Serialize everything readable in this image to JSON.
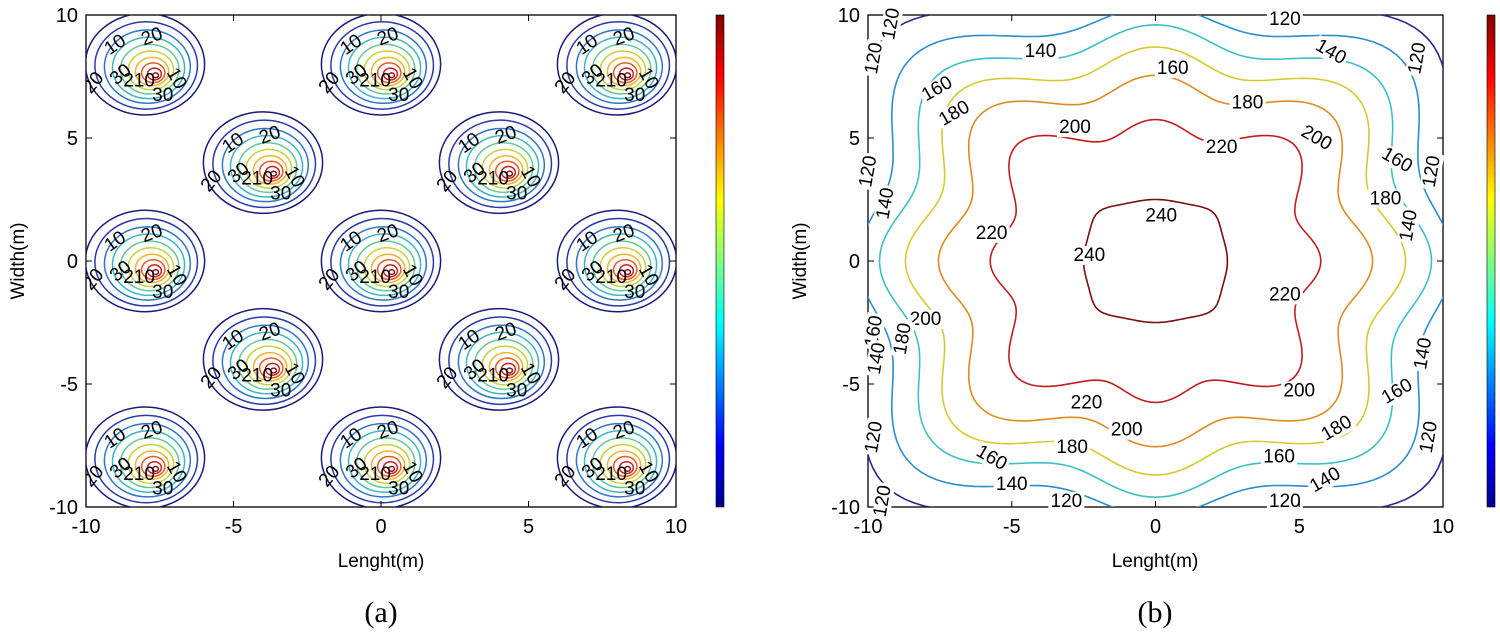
{
  "colors": {
    "colormap": [
      "#00008f",
      "#0000ff",
      "#0080ff",
      "#00ffff",
      "#80ff80",
      "#ffff00",
      "#ff8000",
      "#ff0000",
      "#800000"
    ],
    "contour_a": [
      "#1a1a7a",
      "#2a3aa8",
      "#2e76c8",
      "#3cb5c8",
      "#64c896",
      "#c8d23a",
      "#f0b428",
      "#e85a1e",
      "#c81e1e",
      "#8a1010"
    ],
    "contour_b": {
      "120": "#28288c",
      "140": "#2a8ed0",
      "160": "#3cc0c8",
      "180": "#d8c830",
      "200": "#e08a1e",
      "220": "#c01e1e",
      "240": "#7a0e0e"
    }
  },
  "chart_data": [
    {
      "type": "contour",
      "panel": "(a)",
      "xlabel": "Lenght(m)",
      "ylabel": "Width(m)",
      "xlim": [
        -10,
        10
      ],
      "ylim": [
        -10,
        10
      ],
      "xticks": [
        "-10",
        "-5",
        "0",
        "5",
        "10"
      ],
      "yticks": [
        "10",
        "5",
        "0",
        "-5",
        "-10"
      ],
      "sources": [
        {
          "x": -8,
          "y": 8
        },
        {
          "x": 0,
          "y": 8
        },
        {
          "x": 8,
          "y": 8
        },
        {
          "x": -4,
          "y": 4
        },
        {
          "x": 4,
          "y": 4
        },
        {
          "x": -8,
          "y": 0
        },
        {
          "x": 0,
          "y": 0
        },
        {
          "x": 8,
          "y": 0
        },
        {
          "x": -4,
          "y": -4
        },
        {
          "x": 4,
          "y": -4
        },
        {
          "x": -8,
          "y": -8
        },
        {
          "x": 0,
          "y": -8
        },
        {
          "x": 8,
          "y": -8
        }
      ],
      "contour_levels_labeled": [
        "10",
        "20",
        "30",
        "210"
      ],
      "colorbar": true
    },
    {
      "type": "contour",
      "panel": "(b)",
      "xlabel": "Lenght(m)",
      "ylabel": "Width(m)",
      "xlim": [
        -10,
        10
      ],
      "ylim": [
        -10,
        10
      ],
      "xticks": [
        "-10",
        "-5",
        "0",
        "5",
        "10"
      ],
      "yticks": [
        "10",
        "5",
        "0",
        "-5",
        "-10"
      ],
      "contour_levels": [
        120,
        140,
        160,
        180,
        200,
        220,
        240
      ],
      "colorbar": true
    }
  ],
  "captions": {
    "a": "(a)",
    "b": "(b)"
  },
  "contour_labels_b": [
    {
      "text": "120",
      "x": -9.0,
      "y": 9.6
    },
    {
      "text": "120",
      "x": 4.5,
      "y": 9.6
    },
    {
      "text": "120",
      "x": -9.6,
      "y": 8.2
    },
    {
      "text": "120",
      "x": 9.3,
      "y": 8.2
    },
    {
      "text": "140",
      "x": -4.0,
      "y": 8.3
    },
    {
      "text": "140",
      "x": 6.0,
      "y": 8.3
    },
    {
      "text": "160",
      "x": 0.6,
      "y": 7.6
    },
    {
      "text": "160",
      "x": -7.5,
      "y": 6.8
    },
    {
      "text": "180",
      "x": -6.9,
      "y": 5.8
    },
    {
      "text": "180",
      "x": 3.2,
      "y": 6.2
    },
    {
      "text": "200",
      "x": -2.8,
      "y": 5.2
    },
    {
      "text": "200",
      "x": 5.5,
      "y": 4.8
    },
    {
      "text": "220",
      "x": 2.3,
      "y": 4.4
    },
    {
      "text": "240",
      "x": 0.2,
      "y": 1.6
    },
    {
      "text": "240",
      "x": -2.3,
      "y": 0.0
    },
    {
      "text": "220",
      "x": -5.7,
      "y": 0.9
    },
    {
      "text": "220",
      "x": 4.5,
      "y": -1.6
    },
    {
      "text": "160",
      "x": 8.3,
      "y": 3.9
    },
    {
      "text": "180",
      "x": 8.0,
      "y": 2.3
    },
    {
      "text": "140",
      "x": 9.0,
      "y": 1.4
    },
    {
      "text": "120",
      "x": -9.8,
      "y": 3.6
    },
    {
      "text": "140",
      "x": -9.2,
      "y": 2.3
    },
    {
      "text": "120",
      "x": 9.8,
      "y": 3.6
    },
    {
      "text": "200",
      "x": -8.0,
      "y": -2.6
    },
    {
      "text": "180",
      "x": -8.6,
      "y": -3.2
    },
    {
      "text": "160",
      "x": -9.6,
      "y": -2.9
    },
    {
      "text": "140",
      "x": -9.5,
      "y": -4.0
    },
    {
      "text": "200",
      "x": 5.0,
      "y": -5.5
    },
    {
      "text": "160",
      "x": 8.5,
      "y": -5.5
    },
    {
      "text": "140",
      "x": 9.5,
      "y": -3.8
    },
    {
      "text": "120",
      "x": 9.7,
      "y": -7.2
    },
    {
      "text": "120",
      "x": -9.6,
      "y": -7.2
    },
    {
      "text": "220",
      "x": -2.4,
      "y": -6.0
    },
    {
      "text": "180",
      "x": 6.4,
      "y": -7.0
    },
    {
      "text": "200",
      "x": -1.0,
      "y": -7.1
    },
    {
      "text": "180",
      "x": -2.9,
      "y": -7.8
    },
    {
      "text": "160",
      "x": -5.8,
      "y": -8.2
    },
    {
      "text": "160",
      "x": 4.3,
      "y": -8.2
    },
    {
      "text": "140",
      "x": -5.0,
      "y": -9.3
    },
    {
      "text": "140",
      "x": 6.0,
      "y": -9.1
    },
    {
      "text": "120",
      "x": -9.3,
      "y": -9.8
    },
    {
      "text": "120",
      "x": -3.1,
      "y": -10.0
    },
    {
      "text": "120",
      "x": 4.5,
      "y": -10.0
    }
  ]
}
